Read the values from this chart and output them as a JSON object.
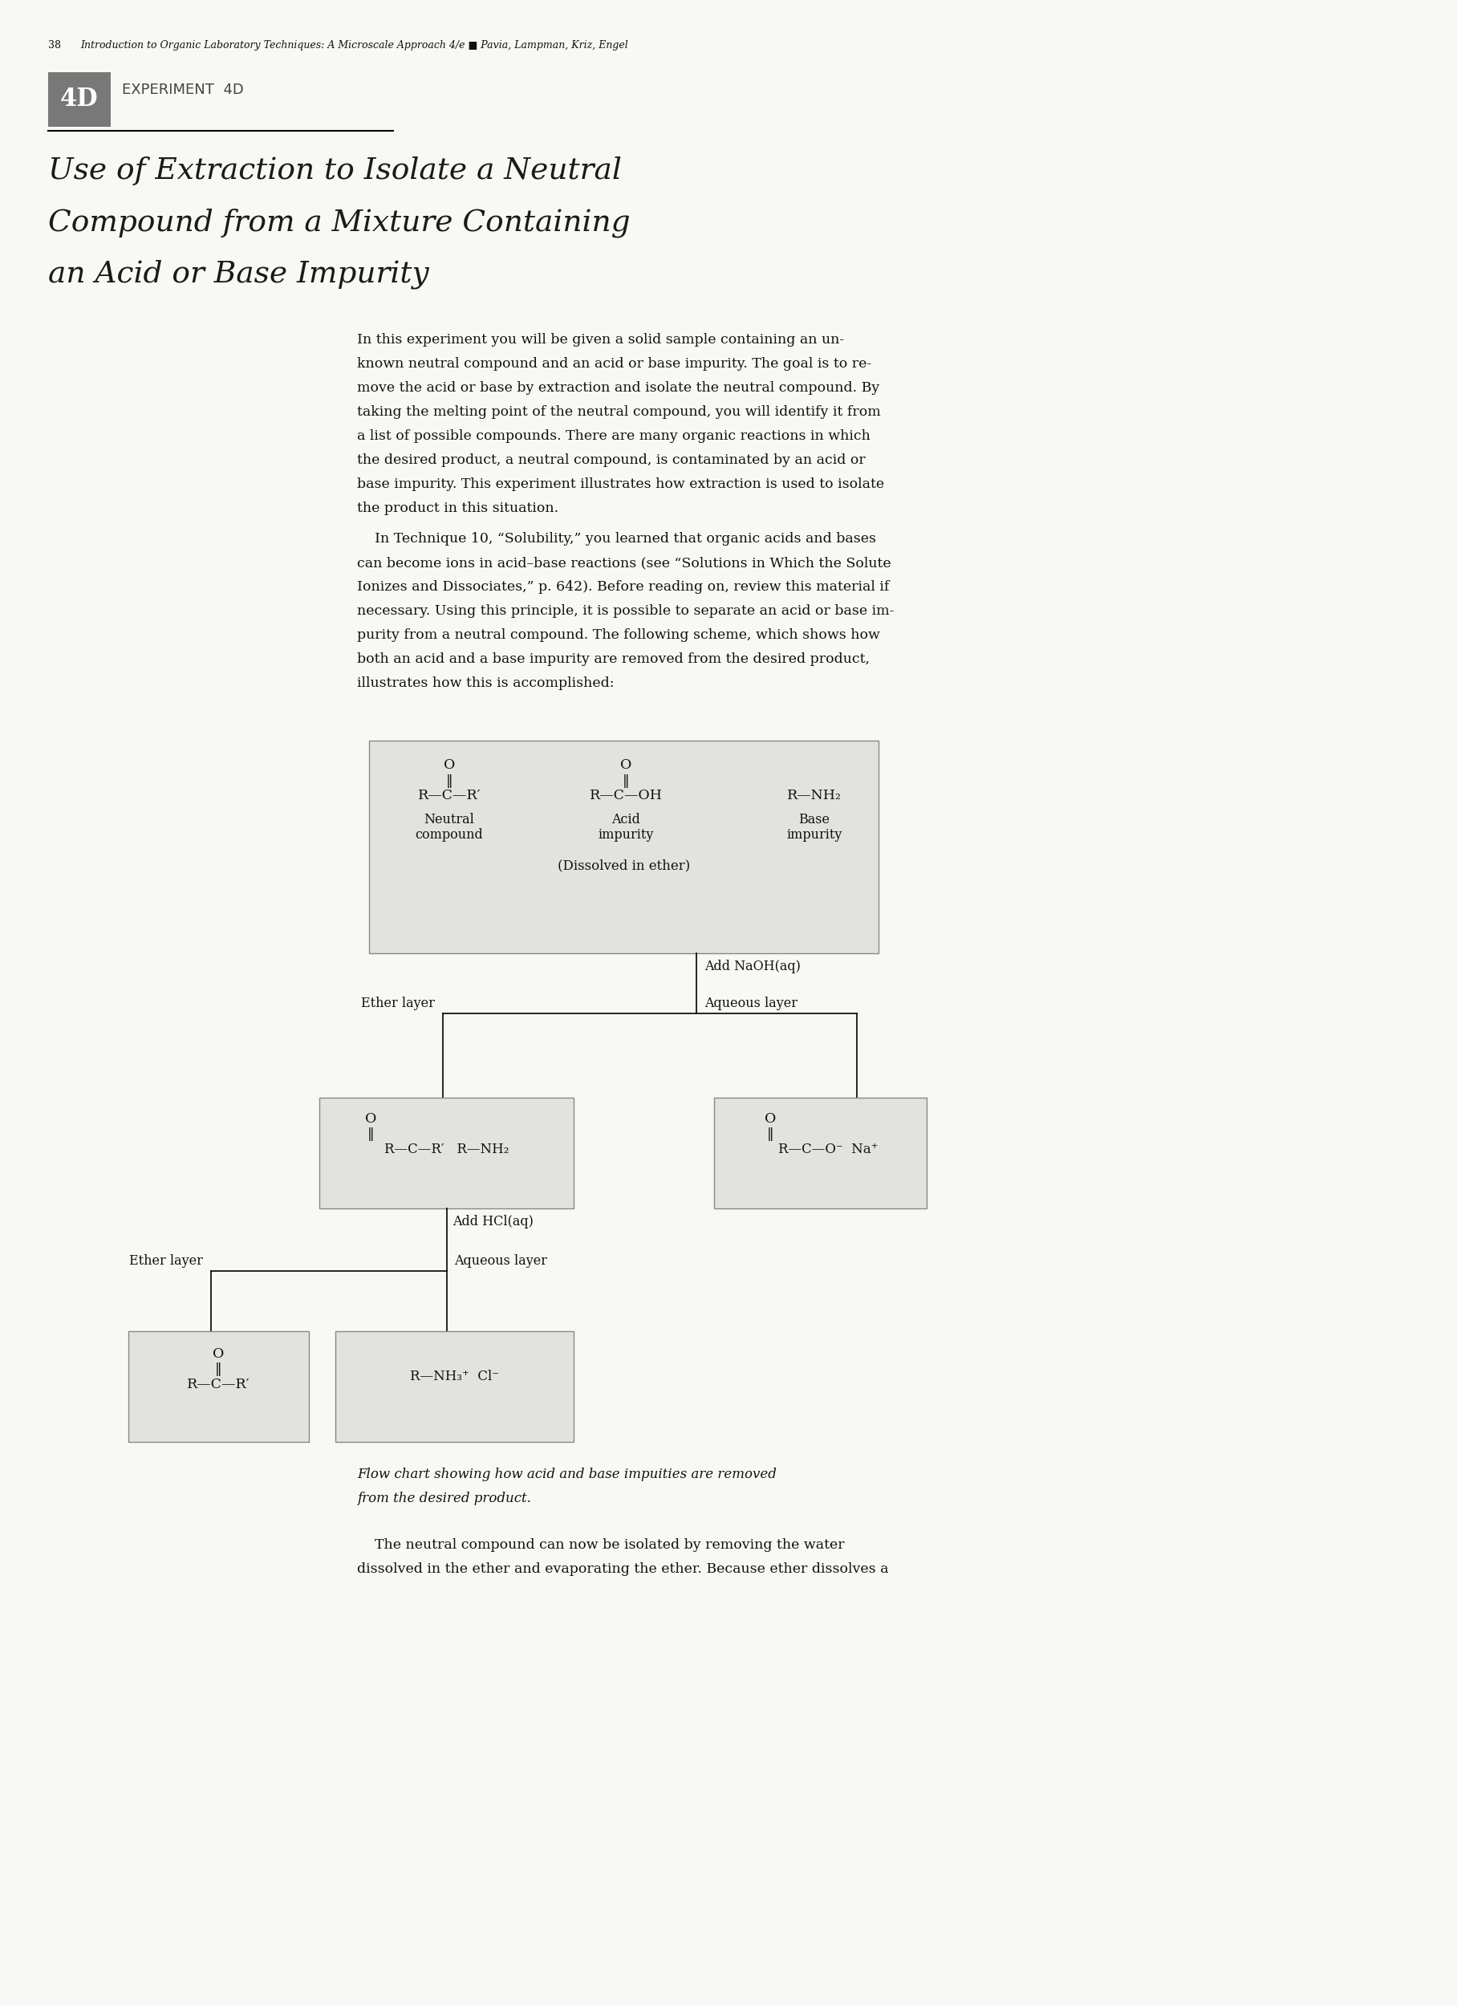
{
  "page_number": "38",
  "header_text": "Introduction to Organic Laboratory Techniques: A Microscale Approach 4/e ■ Pavia, Lampman, Kriz, Engel",
  "experiment_title": "EXPERIMENT  4D",
  "main_title_lines": [
    "Use of Extraction to Isolate a Neutral",
    "Compound from a Mixture Containing",
    "an Acid or Base Impurity"
  ],
  "para1_lines": [
    "In this experiment you will be given a solid sample containing an un-",
    "known neutral compound and an acid or base impurity. The goal is to re-",
    "move the acid or base by extraction and isolate the neutral compound. By",
    "taking the melting point of the neutral compound, you will identify it from",
    "a list of possible compounds. There are many organic reactions in which",
    "the desired product, a neutral compound, is contaminated by an acid or",
    "base impurity. This experiment illustrates how extraction is used to isolate",
    "the product in this situation."
  ],
  "para2_lines": [
    "    In Technique 10, “Solubility,” you learned that organic acids and bases",
    "can become ions in acid–base reactions (see “Solutions in Which the Solute",
    "Ionizes and Dissociates,” p. 642). Before reading on, review this material if",
    "necessary. Using this principle, it is possible to separate an acid or base im-",
    "purity from a neutral compound. The following scheme, which shows how",
    "both an acid and a base impurity are removed from the desired product,",
    "illustrates how this is accomplished:"
  ],
  "caption_lines": [
    "Flow chart showing how acid and base impuities are removed",
    "from the desired product."
  ],
  "para3_lines": [
    "    The neutral compound can now be isolated by removing the water",
    "dissolved in the ether and evaporating the ether. Because ether dissolves a"
  ],
  "bg_color": "#f8f8f5",
  "box_bg": "#e2e2de",
  "badge_color": "#787878",
  "text_color": "#111111",
  "line_color": "#888888"
}
